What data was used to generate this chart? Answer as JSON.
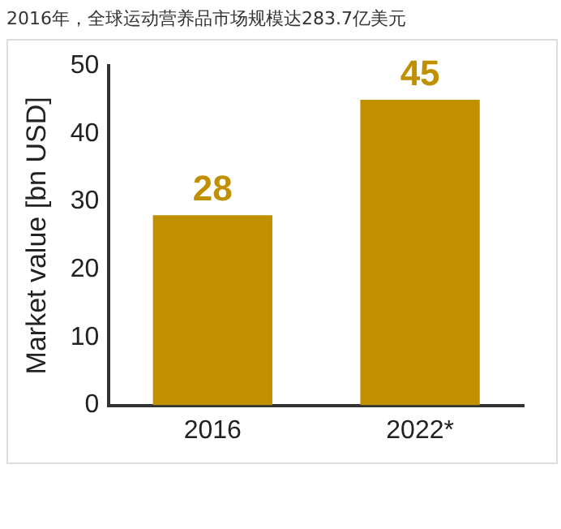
{
  "chart_data": {
    "type": "bar",
    "title": "2016年，全球运动营养品市场规模达283.7亿美元",
    "ylabel": "Market value [bn USD]",
    "categories": [
      "2016",
      "2022*"
    ],
    "values": [
      28,
      45
    ],
    "color": "#c09000",
    "ylim": [
      0,
      50
    ],
    "yticks": [
      0,
      10,
      20,
      30,
      40,
      50
    ],
    "grid": false,
    "data_labels": true,
    "legend": false
  }
}
